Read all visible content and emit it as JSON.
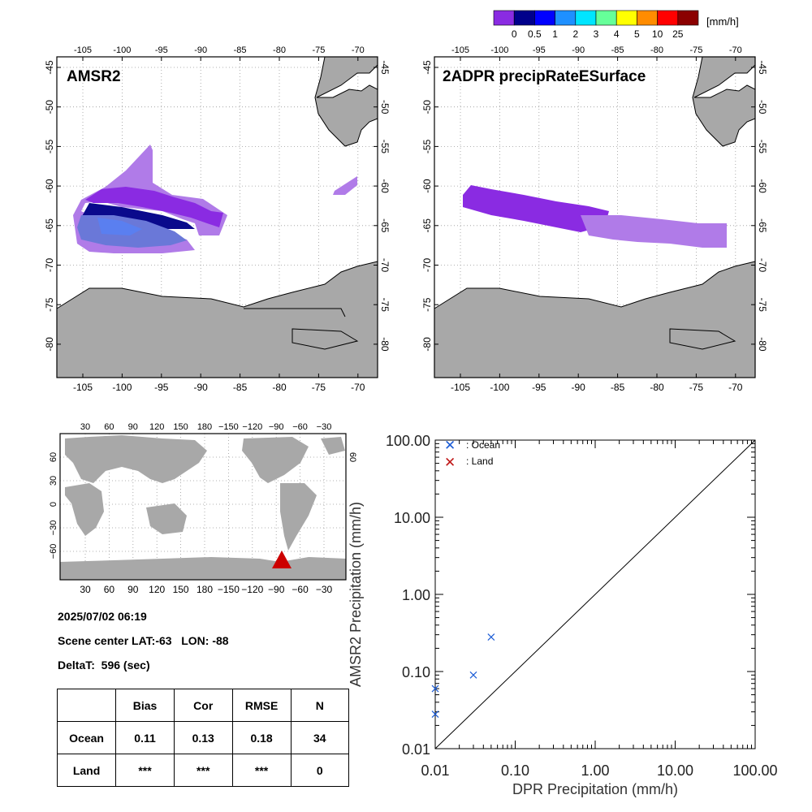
{
  "colorbar": {
    "unit": "[mm/h]",
    "labels": [
      "0",
      "0.5",
      "1",
      "2",
      "3",
      "4",
      "5",
      "10",
      "25"
    ],
    "colors": [
      "#8a2be2",
      "#00008b",
      "#0000ff",
      "#1e90ff",
      "#00e5ff",
      "#66ff99",
      "#ffff00",
      "#ff8c00",
      "#ff0000",
      "#8b0000"
    ]
  },
  "maps": [
    {
      "title": "AMSR2"
    },
    {
      "title": "2ADPR precipRateESurface"
    }
  ],
  "regional_axis": {
    "lon_ticks": [
      "-105",
      "-100",
      "-95",
      "-90",
      "-85",
      "-80",
      "-75",
      "-70"
    ],
    "lat_ticks": [
      "-45",
      "-50",
      "-55",
      "-60",
      "-65",
      "-70",
      "-75",
      "-80"
    ]
  },
  "global_axis": {
    "lon_ticks": [
      "30",
      "60",
      "90",
      "120",
      "150",
      "180",
      "−150",
      "−120",
      "−90",
      "−60",
      "−30"
    ],
    "lat_ticks_left": [
      "60",
      "30",
      "0",
      "−30",
      "−60"
    ],
    "lat_ticks_right": [
      "60"
    ]
  },
  "scene": {
    "datetime": "2025/07/02 06:19",
    "center_line": "Scene center LAT:-63   LON: -88",
    "deltat_line": "DeltaT:  596 (sec)"
  },
  "stats_table": {
    "headers": [
      "",
      "Bias",
      "Cor",
      "RMSE",
      "N"
    ],
    "rows": [
      [
        "Ocean",
        "0.11",
        "0.13",
        "0.18",
        "34"
      ],
      [
        "Land",
        "***",
        "***",
        "***",
        "0"
      ]
    ]
  },
  "colors": {
    "ocean": "#1c5cd6",
    "land": "#c01818",
    "marker": "#cc0000",
    "land_fill": "#a8a8a8"
  },
  "chart_data": {
    "type": "scatter",
    "xlabel": "DPR Precipitation (mm/h)",
    "ylabel": "AMSR2 Precipitation (mm/h)",
    "xscale": "log",
    "yscale": "log",
    "xlim": [
      0.01,
      100
    ],
    "ylim": [
      0.01,
      100
    ],
    "xticks": [
      "0.01",
      "0.10",
      "1.00",
      "10.00",
      "100.00"
    ],
    "yticks": [
      "0.01",
      "0.10",
      "1.00",
      "10.00",
      "100.00"
    ],
    "series": [
      {
        "name": ": Ocean",
        "points": [
          [
            0.01,
            0.028
          ],
          [
            0.01,
            0.06
          ],
          [
            0.03,
            0.09
          ],
          [
            0.05,
            0.28
          ]
        ]
      },
      {
        "name": ": Land",
        "points": []
      }
    ],
    "reference_line": "1:1",
    "legend": "top-left"
  }
}
